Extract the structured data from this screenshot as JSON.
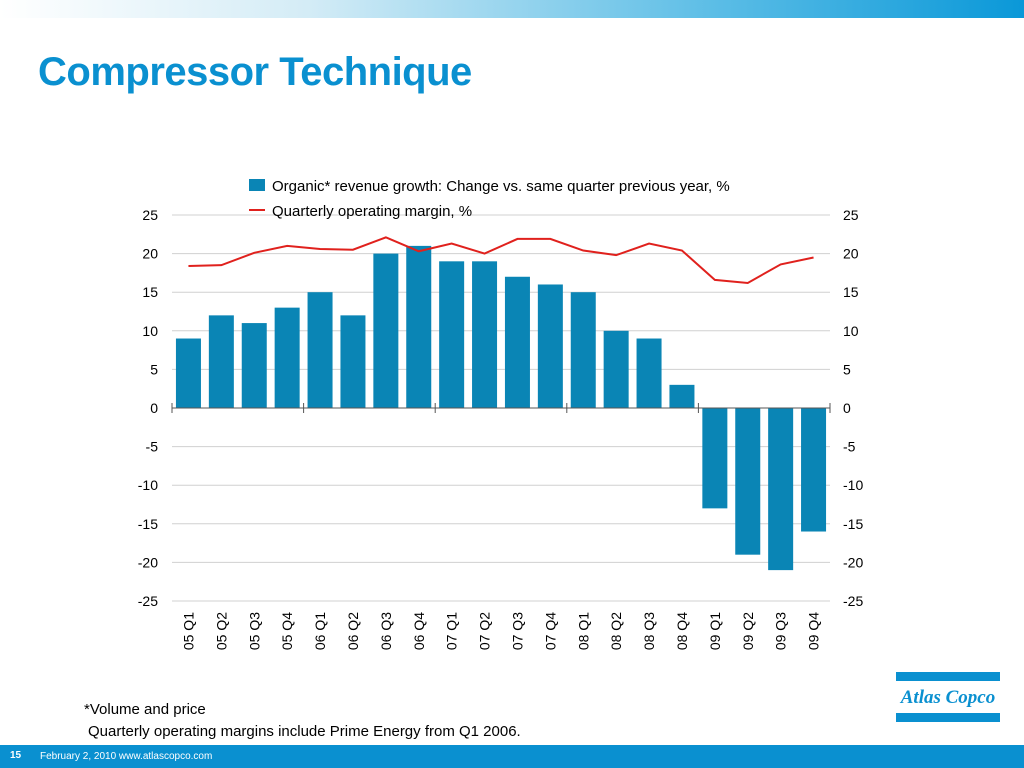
{
  "title": "Compressor Technique",
  "footnotes": {
    "line1": "*Volume and price",
    "line2": "Quarterly operating margins include Prime Energy from Q1 2006."
  },
  "footer": {
    "slide_number": "15",
    "text": "February 2, 2010  www.atlascopco.com"
  },
  "logo": {
    "text": "Atlas Copco",
    "color": "#0a90d0"
  },
  "colors": {
    "accent": "#0a90d0",
    "bar": "#0a85b5",
    "line": "#e0211d"
  },
  "chart_data": {
    "type": "bar",
    "categories": [
      "05 Q1",
      "05 Q2",
      "05 Q3",
      "05 Q4",
      "06 Q1",
      "06 Q2",
      "06 Q3",
      "06 Q4",
      "07 Q1",
      "07 Q2",
      "07 Q3",
      "07 Q4",
      "08 Q1",
      "08 Q2",
      "08 Q3",
      "08 Q4",
      "09 Q1",
      "09 Q2",
      "09 Q3",
      "09 Q4"
    ],
    "series": [
      {
        "name": "Organic* revenue growth: Change vs. same quarter previous year, %",
        "type": "bar",
        "color": "#0a85b5",
        "values": [
          9,
          12,
          11,
          13,
          15,
          12,
          20,
          21,
          19,
          19,
          17,
          16,
          15,
          10,
          9,
          3,
          -13,
          -19,
          -21,
          -16
        ]
      },
      {
        "name": "Quarterly operating margin, %",
        "type": "line",
        "color": "#e0211d",
        "values": [
          18.4,
          18.5,
          20.1,
          21.0,
          20.6,
          20.5,
          22.1,
          20.3,
          21.3,
          20.0,
          21.9,
          21.9,
          20.4,
          19.8,
          21.3,
          20.4,
          16.6,
          16.2,
          18.6,
          19.5
        ]
      }
    ],
    "yticks": [
      25,
      20,
      15,
      10,
      5,
      0,
      -5,
      -10,
      -15,
      -20,
      -25
    ],
    "ylim": [
      -25,
      25
    ],
    "y2lim": [
      -25,
      25
    ],
    "grid": true,
    "legend": "top-center"
  }
}
